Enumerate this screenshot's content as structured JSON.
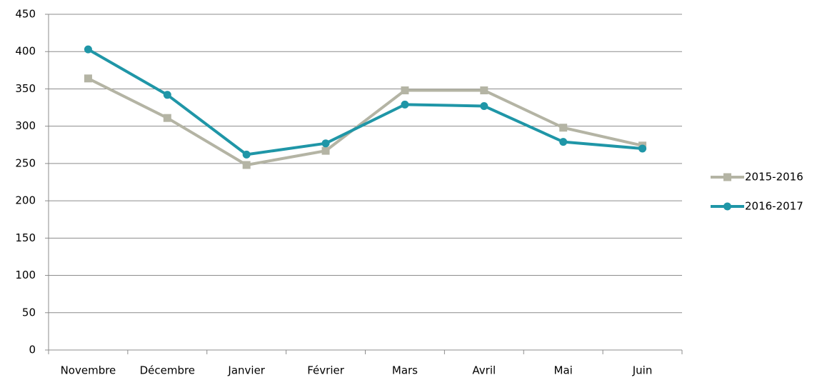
{
  "chart_data": {
    "type": "line",
    "categories": [
      "Novembre",
      "Décembre",
      "Janvier",
      "Février",
      "Mars",
      "Avril",
      "Mai",
      "Juin"
    ],
    "series": [
      {
        "name": "2015-2016",
        "color": "#b4b4a4",
        "marker": "square",
        "values": [
          364,
          311,
          248,
          267,
          348,
          348,
          298,
          274
        ]
      },
      {
        "name": "2016-2017",
        "color": "#1f96a7",
        "marker": "circle",
        "values": [
          403,
          342,
          262,
          277,
          329,
          327,
          279,
          270
        ]
      }
    ],
    "ylim": [
      0,
      450
    ],
    "yticks": [
      0,
      50,
      100,
      150,
      200,
      250,
      300,
      350,
      400,
      450
    ],
    "grid": true,
    "legend": "right"
  }
}
